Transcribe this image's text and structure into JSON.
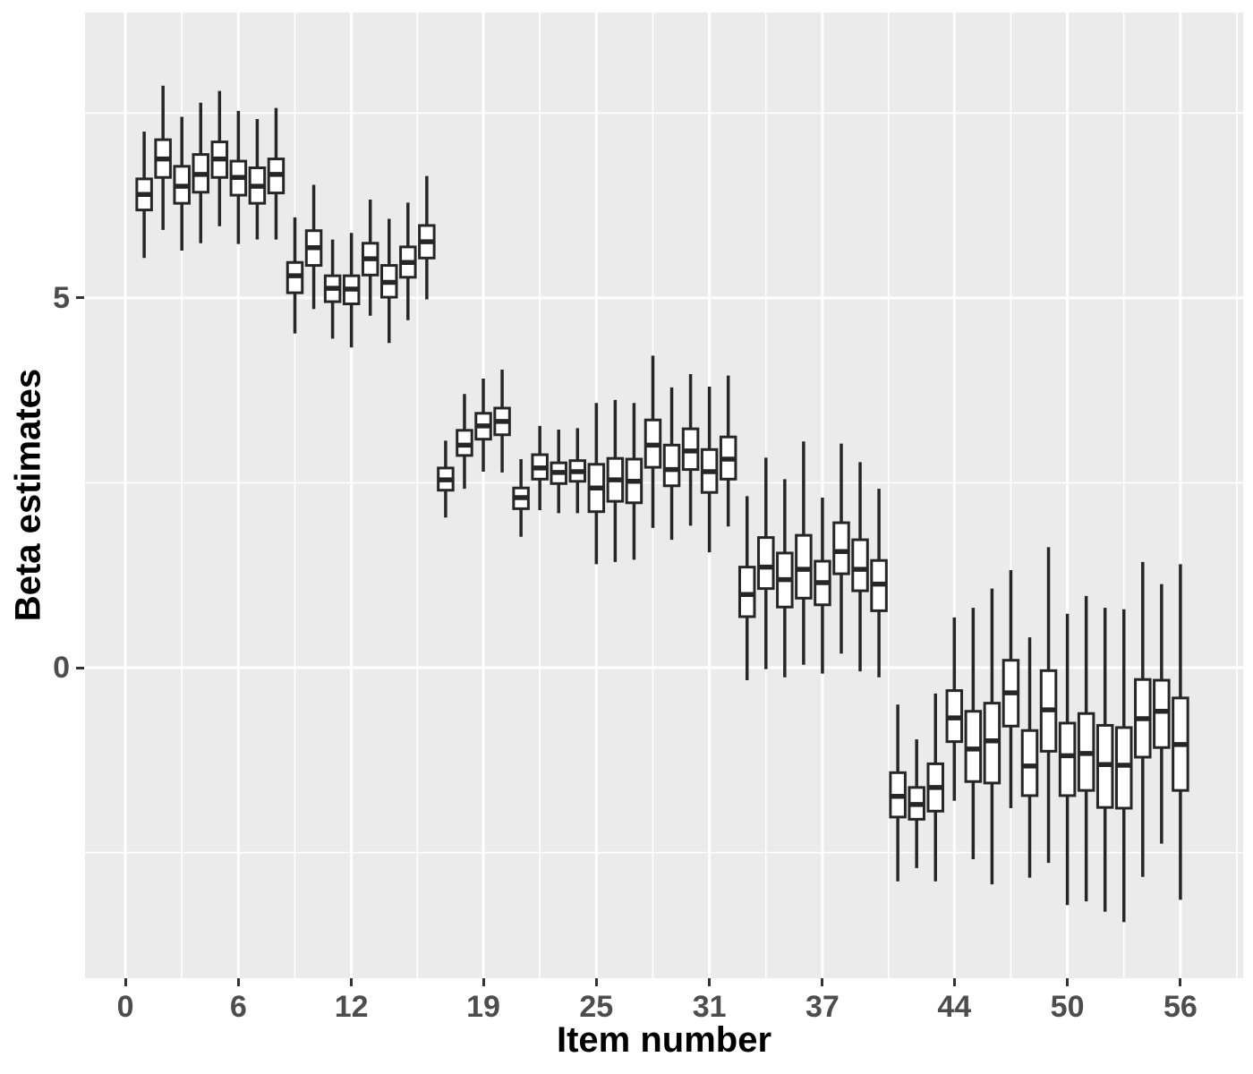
{
  "chart_data": {
    "type": "boxplot",
    "title": "",
    "xlabel": "Item number",
    "ylabel": "Beta estimates",
    "x_ticks": [
      0,
      6,
      12,
      19,
      25,
      31,
      37,
      44,
      50,
      56
    ],
    "x_minor": [
      3,
      9,
      15.5,
      22,
      28,
      34,
      40.5,
      47,
      53,
      59
    ],
    "y_ticks": [
      0,
      5
    ],
    "y_minor": [
      -2.5,
      2.5,
      7.5
    ],
    "xlim": [
      -2.14,
      59.33
    ],
    "ylim": [
      -4.2,
      8.86
    ],
    "grid": true,
    "legend_position": "none",
    "series": [
      {
        "item": 1,
        "low": 5.54,
        "q1": 6.19,
        "median": 6.4,
        "q3": 6.61,
        "high": 7.25
      },
      {
        "item": 2,
        "low": 5.92,
        "q1": 6.63,
        "median": 6.88,
        "q3": 7.14,
        "high": 7.87
      },
      {
        "item": 3,
        "low": 5.64,
        "q1": 6.28,
        "median": 6.51,
        "q3": 6.78,
        "high": 7.45
      },
      {
        "item": 4,
        "low": 5.74,
        "q1": 6.43,
        "median": 6.67,
        "q3": 6.94,
        "high": 7.64
      },
      {
        "item": 5,
        "low": 5.97,
        "q1": 6.63,
        "median": 6.88,
        "q3": 7.11,
        "high": 7.8
      },
      {
        "item": 6,
        "low": 5.73,
        "q1": 6.39,
        "median": 6.63,
        "q3": 6.85,
        "high": 7.53
      },
      {
        "item": 7,
        "low": 5.79,
        "q1": 6.28,
        "median": 6.51,
        "q3": 6.76,
        "high": 7.42
      },
      {
        "item": 8,
        "low": 5.79,
        "q1": 6.42,
        "median": 6.67,
        "q3": 6.88,
        "high": 7.57
      },
      {
        "item": 9,
        "low": 4.52,
        "q1": 5.07,
        "median": 5.3,
        "q3": 5.48,
        "high": 6.09
      },
      {
        "item": 10,
        "low": 4.85,
        "q1": 5.44,
        "median": 5.68,
        "q3": 5.91,
        "high": 6.53
      },
      {
        "item": 11,
        "low": 4.45,
        "q1": 4.95,
        "median": 5.13,
        "q3": 5.3,
        "high": 5.79
      },
      {
        "item": 12,
        "low": 4.33,
        "q1": 4.92,
        "median": 5.12,
        "q3": 5.3,
        "high": 5.88
      },
      {
        "item": 13,
        "low": 4.76,
        "q1": 5.31,
        "median": 5.53,
        "q3": 5.74,
        "high": 6.33
      },
      {
        "item": 14,
        "low": 4.39,
        "q1": 5.01,
        "median": 5.21,
        "q3": 5.44,
        "high": 6.07
      },
      {
        "item": 15,
        "low": 4.7,
        "q1": 5.28,
        "median": 5.48,
        "q3": 5.69,
        "high": 6.29
      },
      {
        "item": 16,
        "low": 4.98,
        "q1": 5.54,
        "median": 5.76,
        "q3": 5.98,
        "high": 6.65
      },
      {
        "item": 17,
        "low": 2.03,
        "q1": 2.4,
        "median": 2.54,
        "q3": 2.7,
        "high": 3.07
      },
      {
        "item": 18,
        "low": 2.42,
        "q1": 2.87,
        "median": 3.01,
        "q3": 3.21,
        "high": 3.7
      },
      {
        "item": 19,
        "low": 2.65,
        "q1": 3.09,
        "median": 3.27,
        "q3": 3.44,
        "high": 3.91
      },
      {
        "item": 20,
        "low": 2.64,
        "q1": 3.15,
        "median": 3.33,
        "q3": 3.51,
        "high": 4.03
      },
      {
        "item": 21,
        "low": 1.77,
        "q1": 2.15,
        "median": 2.3,
        "q3": 2.43,
        "high": 2.82
      },
      {
        "item": 22,
        "low": 2.13,
        "q1": 2.55,
        "median": 2.7,
        "q3": 2.88,
        "high": 3.27
      },
      {
        "item": 23,
        "low": 2.09,
        "q1": 2.49,
        "median": 2.64,
        "q3": 2.77,
        "high": 3.22
      },
      {
        "item": 24,
        "low": 2.09,
        "q1": 2.52,
        "median": 2.65,
        "q3": 2.8,
        "high": 3.24
      },
      {
        "item": 25,
        "low": 1.4,
        "q1": 2.11,
        "median": 2.43,
        "q3": 2.75,
        "high": 3.58
      },
      {
        "item": 26,
        "low": 1.43,
        "q1": 2.25,
        "median": 2.54,
        "q3": 2.83,
        "high": 3.62
      },
      {
        "item": 27,
        "low": 1.46,
        "q1": 2.23,
        "median": 2.52,
        "q3": 2.82,
        "high": 3.58
      },
      {
        "item": 28,
        "low": 1.89,
        "q1": 2.71,
        "median": 3.01,
        "q3": 3.35,
        "high": 4.22
      },
      {
        "item": 29,
        "low": 1.73,
        "q1": 2.46,
        "median": 2.68,
        "q3": 3.01,
        "high": 3.79
      },
      {
        "item": 30,
        "low": 1.92,
        "q1": 2.68,
        "median": 2.93,
        "q3": 3.23,
        "high": 3.97
      },
      {
        "item": 31,
        "low": 1.56,
        "q1": 2.37,
        "median": 2.65,
        "q3": 2.95,
        "high": 3.8
      },
      {
        "item": 32,
        "low": 1.91,
        "q1": 2.55,
        "median": 2.82,
        "q3": 3.12,
        "high": 3.95
      },
      {
        "item": 33,
        "low": -0.17,
        "q1": 0.69,
        "median": 0.99,
        "q3": 1.36,
        "high": 2.32
      },
      {
        "item": 34,
        "low": -0.02,
        "q1": 1.07,
        "median": 1.36,
        "q3": 1.76,
        "high": 2.84
      },
      {
        "item": 35,
        "low": -0.13,
        "q1": 0.82,
        "median": 1.19,
        "q3": 1.55,
        "high": 2.55
      },
      {
        "item": 36,
        "low": 0.04,
        "q1": 0.94,
        "median": 1.33,
        "q3": 1.79,
        "high": 3.06
      },
      {
        "item": 37,
        "low": -0.08,
        "q1": 0.85,
        "median": 1.15,
        "q3": 1.44,
        "high": 2.3
      },
      {
        "item": 38,
        "low": 0.19,
        "q1": 1.27,
        "median": 1.57,
        "q3": 1.96,
        "high": 3.03
      },
      {
        "item": 39,
        "low": -0.05,
        "q1": 1.04,
        "median": 1.33,
        "q3": 1.73,
        "high": 2.78
      },
      {
        "item": 40,
        "low": -0.13,
        "q1": 0.77,
        "median": 1.13,
        "q3": 1.45,
        "high": 2.42
      },
      {
        "item": 41,
        "low": -2.89,
        "q1": -2.02,
        "median": -1.74,
        "q3": -1.42,
        "high": -0.5
      },
      {
        "item": 42,
        "low": -2.71,
        "q1": -2.05,
        "median": -1.85,
        "q3": -1.62,
        "high": -0.97
      },
      {
        "item": 43,
        "low": -2.89,
        "q1": -1.94,
        "median": -1.62,
        "q3": -1.3,
        "high": -0.35
      },
      {
        "item": 44,
        "low": -1.8,
        "q1": -1.0,
        "median": -0.68,
        "q3": -0.31,
        "high": 0.68
      },
      {
        "item": 45,
        "low": -2.59,
        "q1": -1.54,
        "median": -1.1,
        "q3": -0.59,
        "high": 0.81
      },
      {
        "item": 46,
        "low": -2.93,
        "q1": -1.56,
        "median": -0.99,
        "q3": -0.48,
        "high": 1.07
      },
      {
        "item": 47,
        "low": -1.9,
        "q1": -0.79,
        "median": -0.34,
        "q3": 0.1,
        "high": 1.32
      },
      {
        "item": 48,
        "low": -2.84,
        "q1": -1.73,
        "median": -1.33,
        "q3": -0.85,
        "high": 0.41
      },
      {
        "item": 49,
        "low": -2.64,
        "q1": -1.13,
        "median": -0.57,
        "q3": -0.04,
        "high": 1.63
      },
      {
        "item": 50,
        "low": -3.21,
        "q1": -1.73,
        "median": -1.19,
        "q3": -0.75,
        "high": 0.73
      },
      {
        "item": 51,
        "low": -3.16,
        "q1": -1.66,
        "median": -1.16,
        "q3": -0.62,
        "high": 0.97
      },
      {
        "item": 52,
        "low": -3.3,
        "q1": -1.89,
        "median": -1.31,
        "q3": -0.78,
        "high": 0.81
      },
      {
        "item": 53,
        "low": -3.44,
        "q1": -1.9,
        "median": -1.32,
        "q3": -0.81,
        "high": 0.79
      },
      {
        "item": 54,
        "low": -2.83,
        "q1": -1.21,
        "median": -0.69,
        "q3": -0.16,
        "high": 1.43
      },
      {
        "item": 55,
        "low": -2.38,
        "q1": -1.08,
        "median": -0.59,
        "q3": -0.17,
        "high": 1.13
      },
      {
        "item": 56,
        "low": -3.14,
        "q1": -1.66,
        "median": -1.04,
        "q3": -0.41,
        "high": 1.4
      }
    ]
  },
  "colors": {
    "panel_bg": "#EBEBEB",
    "grid": "#FFFFFF",
    "box_border": "#262626",
    "box_fill": "#FFFFFF",
    "whisker": "#262626",
    "axis_text": "#4D4D4D",
    "axis_title": "#000000",
    "tick_mark": "#333333"
  }
}
